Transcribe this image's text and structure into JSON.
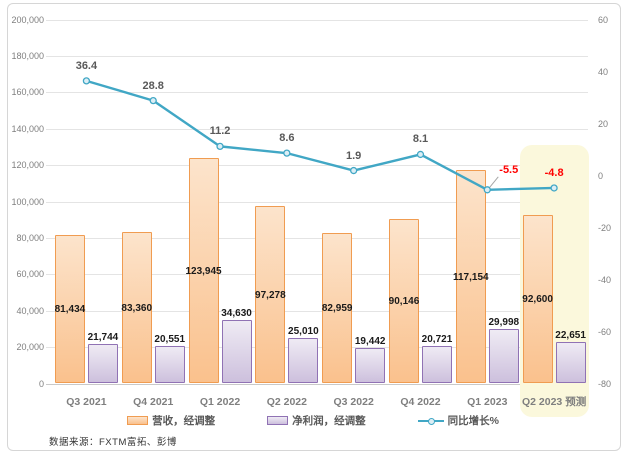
{
  "source_note": "数据来源：FXTM富拓、彭博",
  "chart_data": {
    "type": "combo",
    "title": "",
    "categories": [
      "Q3 2021",
      "Q4 2021",
      "Q1 2022",
      "Q2 2022",
      "Q3 2022",
      "Q4 2022",
      "Q1 2023",
      "Q2 2023 预测"
    ],
    "series": [
      {
        "name": "营收，经调整",
        "type": "bar",
        "axis": "left",
        "values": [
          81434,
          83360,
          123945,
          97278,
          82959,
          90146,
          117154,
          92600
        ]
      },
      {
        "name": "净利润，经调整",
        "type": "bar",
        "axis": "left",
        "values": [
          21744,
          20551,
          34630,
          25010,
          19442,
          20721,
          29998,
          22651
        ]
      },
      {
        "name": "同比增长%",
        "type": "line",
        "axis": "right",
        "values": [
          36.4,
          28.8,
          11.2,
          8.6,
          1.9,
          8.1,
          -5.5,
          -4.8
        ]
      }
    ],
    "left_axis": {
      "min": 0,
      "max": 200000,
      "step": 20000
    },
    "right_axis": {
      "min": -80,
      "max": 60,
      "step": 20
    },
    "grid": true,
    "legend_position": "bottom",
    "forecast_category_index": 7,
    "colors": {
      "revenue_fill_top": "#FCE4CC",
      "revenue_fill_bottom": "#FAC18D",
      "revenue_border": "#F09C51",
      "profit_fill_top": "#EFEBF4",
      "profit_fill_bottom": "#CDC0DD",
      "profit_border": "#9072B4",
      "line": "#41A7C5",
      "marker_fill": "#DCEEF5",
      "line_label_positive": "#595959",
      "line_label_negative": "#FF0000",
      "bar_label": "#1A1A1A",
      "axis_label": "#7F7F7F",
      "grid_line": "#E4E4E4",
      "forecast_highlight": "#FBF8DC"
    }
  }
}
